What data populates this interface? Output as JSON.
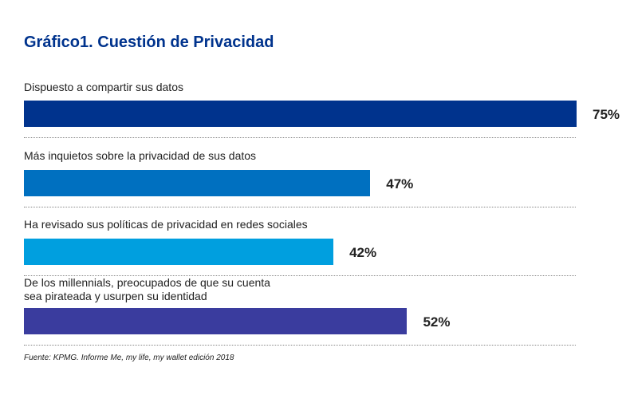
{
  "chart_data": {
    "type": "bar",
    "orientation": "horizontal",
    "title": "Gráfico1. Cuestión de Privacidad",
    "categories": [
      "Dispuesto a compartir sus datos",
      "Más inquietos sobre la privacidad de sus datos",
      "Ha revisado sus políticas de privacidad en redes sociales",
      "De los millennials,  preocupados de que su cuenta\nsea pirateada y usurpen su identidad"
    ],
    "values": [
      75,
      47,
      42,
      52
    ],
    "value_labels": [
      "75%",
      "47%",
      "42%",
      "52%"
    ],
    "colors": [
      "#00338D",
      "#0070C0",
      "#009FDF",
      "#3A3C9E"
    ],
    "xlim": [
      0,
      75
    ],
    "grid": false,
    "legend": "none",
    "source": "Fuente: KPMG. Informe Me, my life, my wallet edición 2018"
  }
}
